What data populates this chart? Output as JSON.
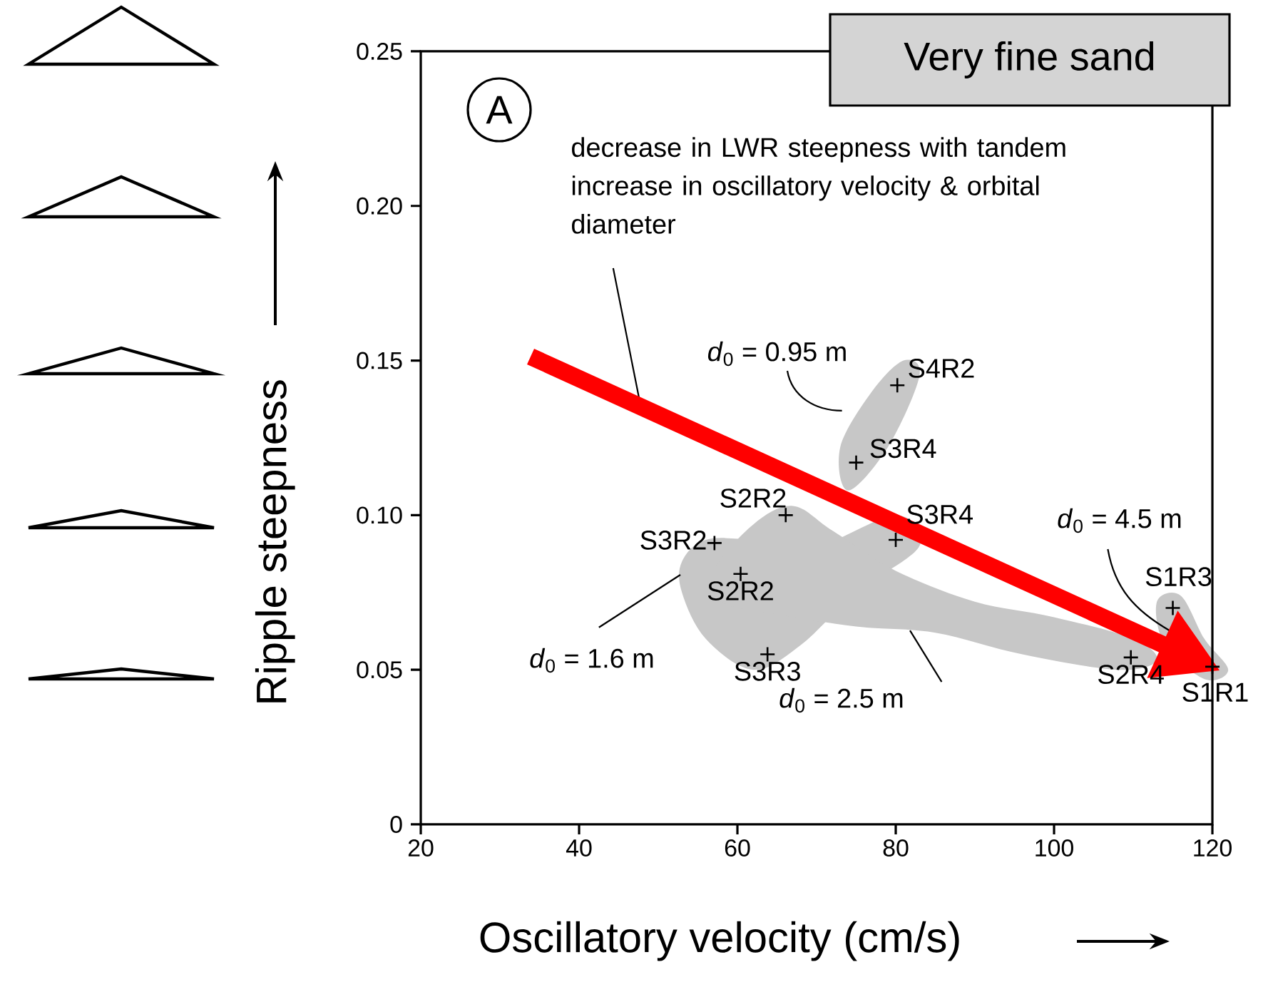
{
  "chart_data": {
    "type": "scatter",
    "title": "Very fine sand",
    "xlabel": "Oscillatory velocity (cm/s)",
    "ylabel": "Ripple steepness",
    "x": [
      80.2,
      75.0,
      66.1,
      57.1,
      60.4,
      63.8,
      80.0,
      109.7,
      115.0,
      120.0
    ],
    "values": [
      0.142,
      0.117,
      0.1,
      0.091,
      0.081,
      0.055,
      0.092,
      0.054,
      0.07,
      0.051
    ],
    "color": "#000000",
    "marker": "cross",
    "xlim": [
      20,
      120
    ],
    "ylim": [
      0,
      0.25
    ],
    "xticks": [
      20,
      40,
      60,
      80,
      100,
      120
    ],
    "yticks": [
      0,
      0.05,
      {
        "value": 0.1,
        "label": "0.10"
      },
      0.15,
      {
        "value": 0.2,
        "label": "0.20"
      },
      0.25
    ],
    "annotations": [
      "A",
      "decrease in LWR steepness with tandem increase in oscillatory velocity & orbital diameter",
      {
        "text": "S4R2",
        "x": 80.2,
        "y": 0.142
      },
      {
        "text": "S3R4",
        "x": 75.0,
        "y": 0.117
      },
      {
        "text": "S2R2",
        "x": 66.1,
        "y": 0.1
      },
      {
        "text": "S3R2",
        "x": 57.1,
        "y": 0.091
      },
      {
        "text": "S2R2",
        "x": 60.4,
        "y": 0.081
      },
      {
        "text": "S3R3",
        "x": 63.8,
        "y": 0.055
      },
      {
        "text": "S3R4",
        "x": 80.0,
        "y": 0.092
      },
      {
        "text": "S2R4",
        "x": 109.7,
        "y": 0.054
      },
      {
        "text": "S1R3",
        "x": 115.0,
        "y": 0.07
      },
      {
        "text": "S1R1",
        "x": 120.0,
        "y": 0.051
      },
      "*d*$_{0}$ = 0.95 m",
      "*d*$_{0}$ = 1.6 m",
      "*d*$_{0}$ = 2.5 m",
      "*d*$_{0}$ = 4.5 m"
    ]
  }
}
